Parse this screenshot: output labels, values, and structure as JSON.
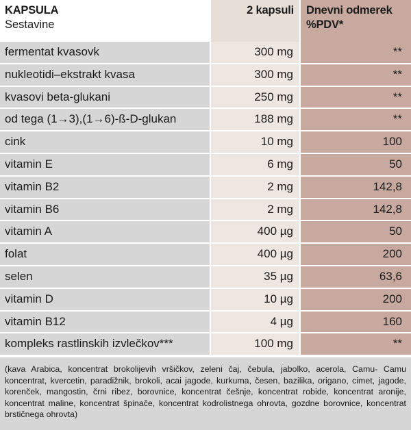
{
  "header": {
    "title": "KAPSULA",
    "subtitle": "Sestavine",
    "col_amount": "2 kapsuli",
    "col_pdv_line1": "Dnevni odmerek",
    "col_pdv_line2": "%PDV*"
  },
  "rows": [
    {
      "name": "fermentat kvasovk",
      "amount": "300 mg",
      "pdv": "**"
    },
    {
      "name": "nukleotidi–ekstrakt kvasa",
      "amount": "300 mg",
      "pdv": "**"
    },
    {
      "name": "kvasovi beta-glukani",
      "amount": "250 mg",
      "pdv": "**"
    },
    {
      "name": "od tega (1→3),(1→6)-ß-D-glukan",
      "amount": "188 mg",
      "pdv": "**"
    },
    {
      "name": "cink",
      "amount": "10 mg",
      "pdv": "100"
    },
    {
      "name": "vitamin E",
      "amount": "6 mg",
      "pdv": "50"
    },
    {
      "name": "vitamin B2",
      "amount": "2 mg",
      "pdv": "142,8"
    },
    {
      "name": "vitamin B6",
      "amount": "2 mg",
      "pdv": "142,8"
    },
    {
      "name": "vitamin A",
      "amount": "400 µg",
      "pdv": "50"
    },
    {
      "name": "folat",
      "amount": "400 µg",
      "pdv": "200"
    },
    {
      "name": "selen",
      "amount": "35 µg",
      "pdv": "63,6"
    },
    {
      "name": "vitamin D",
      "amount": "10 µg",
      "pdv": "200"
    },
    {
      "name": "vitamin B12",
      "amount": "4 µg",
      "pdv": "160"
    },
    {
      "name": "kompleks rastlinskih izvlečkov***",
      "amount": "100 mg",
      "pdv": "**"
    }
  ],
  "footnote": "(kava Arabica, koncentrat brokolijevih vršičkov, zeleni čaj, čebula, jabolko, acerola, Camu- Camu koncentrat, kvercetin, paradižnik, brokoli, acai jagode, kurkuma, česen, bazilika, origano, cimet, jagode, korenček, mangostin, črni ribez, borovnice, koncentrat češnje, koncentrat robide, koncentrat aronije, koncentrat maline, koncentrat špinače, koncentrat kodrolistnega ohrovta, gozdne borovnice, koncentrat brstičnega ohrovta)"
}
